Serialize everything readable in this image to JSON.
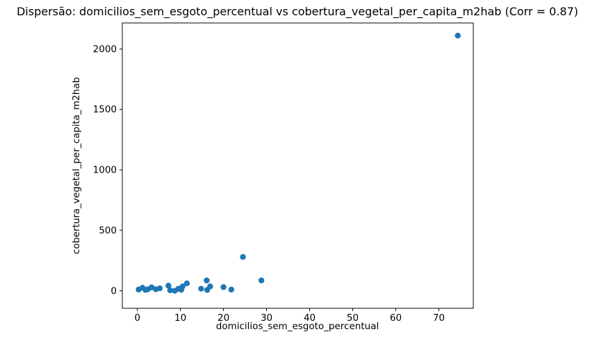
{
  "chart_data": {
    "type": "scatter",
    "title": "Dispersão: domicilios_sem_esgoto_percentual vs cobertura_vegetal_per_capita_m2hab (Corr = 0.87)",
    "xlabel": "domicilios_sem_esgoto_percentual",
    "ylabel": "cobertura_vegetal_per_capita_m2hab",
    "correlation": 0.87,
    "marker_color": "#1f77b4",
    "axis_color": "#000000",
    "background_color": "#ffffff",
    "grid": false,
    "legend_position": "none",
    "xlim": [
      -3.5,
      78
    ],
    "ylim": [
      -145,
      2215
    ],
    "xticks": [
      0,
      10,
      20,
      30,
      40,
      50,
      60,
      70
    ],
    "yticks": [
      0,
      500,
      1000,
      1500,
      2000
    ],
    "points": [
      {
        "x": 0.3,
        "y": 10
      },
      {
        "x": 1.2,
        "y": 25
      },
      {
        "x": 1.9,
        "y": 7
      },
      {
        "x": 2.4,
        "y": 12
      },
      {
        "x": 3.3,
        "y": 28
      },
      {
        "x": 4.3,
        "y": 12
      },
      {
        "x": 5.2,
        "y": 20
      },
      {
        "x": 7.2,
        "y": 42
      },
      {
        "x": 7.6,
        "y": 4
      },
      {
        "x": 8.7,
        "y": 0
      },
      {
        "x": 9.5,
        "y": 17
      },
      {
        "x": 10.2,
        "y": 8
      },
      {
        "x": 10.5,
        "y": 36
      },
      {
        "x": 11.5,
        "y": 61
      },
      {
        "x": 14.8,
        "y": 17
      },
      {
        "x": 16.1,
        "y": 85
      },
      {
        "x": 16.2,
        "y": 7
      },
      {
        "x": 16.9,
        "y": 36
      },
      {
        "x": 20.0,
        "y": 30
      },
      {
        "x": 21.8,
        "y": 10
      },
      {
        "x": 24.5,
        "y": 280
      },
      {
        "x": 28.8,
        "y": 85
      },
      {
        "x": 74.4,
        "y": 2110
      }
    ]
  }
}
